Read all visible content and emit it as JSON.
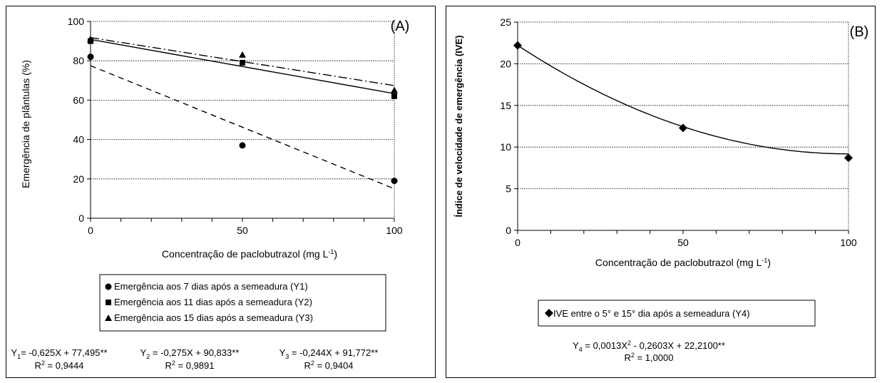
{
  "chart_data": [
    {
      "panel_label": "(A)",
      "type": "scatter",
      "xlabel": "Concentração de paclobutrazol (mg L",
      "xlabel_sup": "-1",
      "xlabel_end": ")",
      "ylabel": "Emergência de plântulas (%)",
      "xlim": [
        0,
        100
      ],
      "ylim": [
        0,
        100
      ],
      "xticks": [
        0,
        50,
        100
      ],
      "yticks": [
        0,
        20,
        40,
        60,
        80,
        100
      ],
      "grid": "horizontal dotted",
      "legend_placement": "bottom",
      "series": [
        {
          "name": "Emergência aos 7 dias após a semeadura  (Y1)",
          "marker": "circle",
          "x": [
            0,
            50,
            100
          ],
          "y": [
            82,
            37,
            19
          ],
          "fit": {
            "slope": -0.625,
            "intercept": 77.495,
            "dash": "8,6"
          },
          "equation": {
            "y_label": "Y",
            "y_sub": "1",
            "rhs": "= -0,625X + 77,495**",
            "r2_label": "R",
            "r2_sup": "2",
            "r2_value": " = 0,9444"
          }
        },
        {
          "name": "Emergência aos 11 dias após a semeadura  (Y2)",
          "marker": "square",
          "x": [
            0,
            50,
            100
          ],
          "y": [
            90,
            79,
            62
          ],
          "fit": {
            "slope": -0.275,
            "intercept": 90.833,
            "dash": ""
          },
          "equation": {
            "y_label": "Y",
            "y_sub": "2",
            "rhs": " = -0,275X + 90,833**",
            "r2_label": "R",
            "r2_sup": "2",
            "r2_value": " = 0,9891"
          }
        },
        {
          "name": "Emergência aos 15 dias após a semeadura  (Y3)",
          "marker": "triangle",
          "x": [
            0,
            50,
            100
          ],
          "y": [
            91,
            83,
            65
          ],
          "fit": {
            "slope": -0.244,
            "intercept": 91.772,
            "dash": "12,4,2,4"
          },
          "equation": {
            "y_label": "Y",
            "y_sub": "3",
            "rhs": " = -0,244X + 91,772**",
            "r2_label": "R",
            "r2_sup": "2",
            "r2_value": " = 0,9404"
          }
        }
      ]
    },
    {
      "panel_label": "(B)",
      "type": "scatter",
      "xlabel": "Concentração de paclobutrazol (mg L",
      "xlabel_sup": "-1",
      "xlabel_end": ")",
      "ylabel": "Índice de velocidade de emergência (IVE)",
      "xlim": [
        0,
        100
      ],
      "ylim": [
        0,
        25
      ],
      "xticks": [
        0,
        50,
        100
      ],
      "yticks": [
        0,
        5,
        10,
        15,
        20,
        25
      ],
      "grid": "horizontal dotted",
      "legend_placement": "bottom",
      "series": [
        {
          "name": "IVE entre o 5° e 15° dia após a semeadura (Y4)",
          "marker": "diamond",
          "x": [
            0,
            50,
            100
          ],
          "y": [
            22.2,
            12.3,
            8.7
          ],
          "fit": {
            "a": 0.0013,
            "b": -0.2603,
            "c": 22.21
          },
          "equation": {
            "y_label": "Y",
            "y_sub": "4",
            "rhs_a": " = 0,0013X",
            "rhs_sup": "2",
            "rhs_b": " - 0,2603X + 22,2100**",
            "r2_label": "R",
            "r2_sup": "2",
            "r2_value": " = 1,0000"
          }
        }
      ]
    }
  ]
}
